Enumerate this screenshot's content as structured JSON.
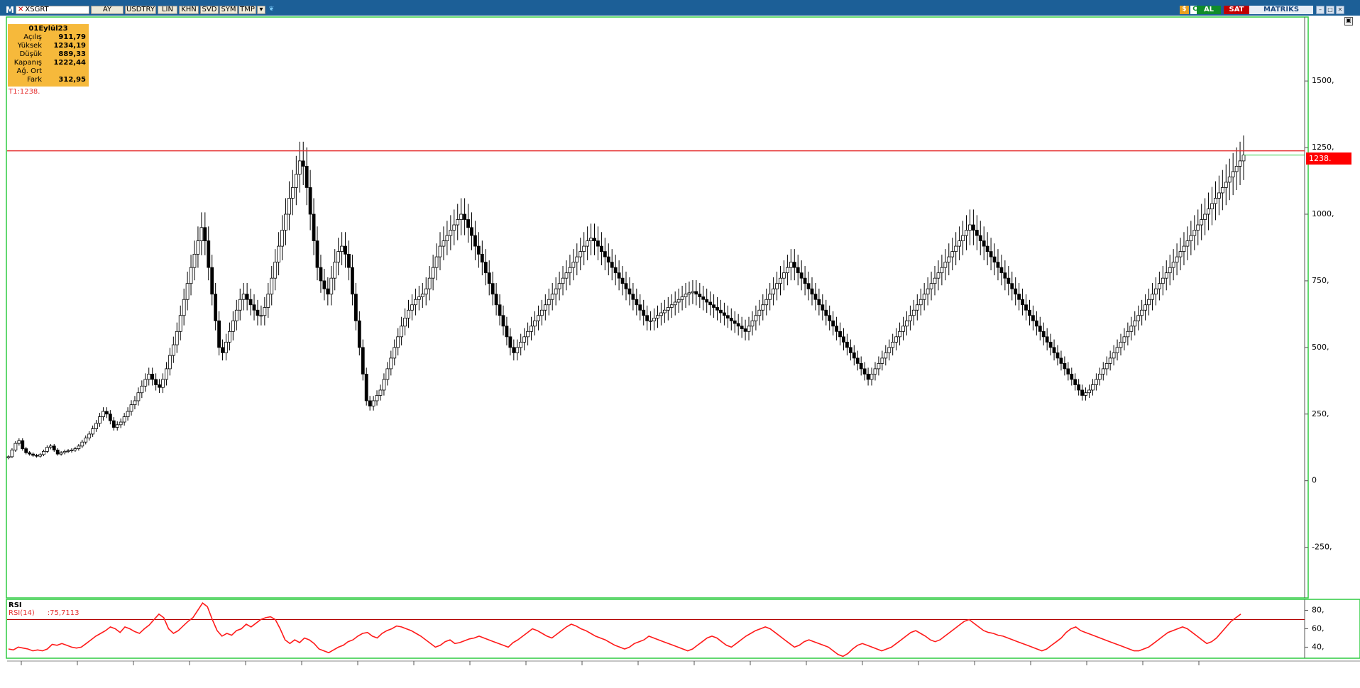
{
  "toolbar": {
    "logo": "M",
    "symbol": "XSGRT",
    "period": "AY",
    "currency": "USDTRY",
    "scale": "LIN",
    "buttons": [
      "KHN",
      "SVD",
      "SYM",
      "TMP"
    ],
    "buy_label": "AL",
    "sell_label": "SAT",
    "brand": "MATRIKS",
    "icons": [
      "close-icon",
      "dropdown-icon",
      "twitter-icon",
      "chart-icon",
      "refresh-icon",
      "minimize-icon",
      "restore-icon",
      "close-window-icon"
    ]
  },
  "info_box": {
    "date": "01Eylül23",
    "rows": [
      {
        "label": "Açılış",
        "value": "911,79"
      },
      {
        "label": "Yüksek",
        "value": "1234,19"
      },
      {
        "label": "Düşük",
        "value": "889,33"
      },
      {
        "label": "Kapanış",
        "value": "1222,44"
      },
      {
        "label": "Ağ. Ort",
        "value": ""
      },
      {
        "label": "Fark",
        "value": "312,95"
      }
    ]
  },
  "trendline_label": "T1:1238.",
  "price_tag": "1238.",
  "rsi": {
    "title": "RSI",
    "series_label": "RSI(14)",
    "series_value": ":75,7113"
  },
  "colors": {
    "toolbar": "#1c5f97",
    "up_candle": "#ffffff",
    "down_candle": "#000000",
    "trendline": "#e53030",
    "rsi_line": "#ff1a1a",
    "panel_border": "#2ecc40",
    "info_box": "#f6b93b"
  },
  "chart_data": [
    {
      "type": "candlestick",
      "title": "XSGRT",
      "period": "monthly",
      "y_ticks": [
        "-250,",
        "0",
        "250,",
        "500,",
        "750,",
        "1000,",
        "1250,",
        "1500,"
      ],
      "ylim": [
        -440,
        1740
      ],
      "horizontal_line": 1238,
      "closes": [
        90,
        115,
        140,
        150,
        120,
        105,
        100,
        95,
        92,
        98,
        110,
        125,
        130,
        115,
        100,
        105,
        110,
        112,
        115,
        120,
        130,
        145,
        160,
        175,
        195,
        215,
        240,
        260,
        250,
        225,
        200,
        210,
        220,
        240,
        260,
        285,
        300,
        330,
        355,
        380,
        400,
        380,
        360,
        350,
        380,
        420,
        470,
        510,
        560,
        620,
        680,
        740,
        800,
        850,
        900,
        950,
        900,
        800,
        700,
        600,
        500,
        480,
        520,
        560,
        600,
        640,
        680,
        700,
        680,
        660,
        640,
        620,
        620,
        650,
        700,
        760,
        820,
        880,
        940,
        1000,
        1060,
        1100,
        1150,
        1200,
        1180,
        1100,
        1000,
        900,
        800,
        750,
        720,
        700,
        760,
        820,
        860,
        880,
        850,
        800,
        700,
        600,
        500,
        400,
        300,
        280,
        300,
        320,
        340,
        380,
        420,
        460,
        500,
        540,
        580,
        610,
        640,
        660,
        680,
        690,
        700,
        720,
        760,
        800,
        840,
        880,
        900,
        920,
        940,
        960,
        980,
        1000,
        980,
        950,
        920,
        880,
        850,
        820,
        780,
        740,
        700,
        660,
        620,
        580,
        540,
        500,
        480,
        500,
        520,
        540,
        560,
        580,
        600,
        620,
        640,
        660,
        680,
        700,
        720,
        740,
        760,
        780,
        800,
        820,
        840,
        860,
        880,
        900,
        910,
        900,
        880,
        860,
        840,
        820,
        800,
        780,
        760,
        740,
        720,
        700,
        680,
        660,
        640,
        620,
        600,
        600,
        610,
        620,
        630,
        640,
        650,
        660,
        670,
        680,
        690,
        700,
        705,
        710,
        700,
        690,
        680,
        670,
        660,
        650,
        640,
        630,
        620,
        610,
        600,
        590,
        580,
        570,
        560,
        580,
        600,
        620,
        640,
        660,
        680,
        700,
        720,
        740,
        760,
        780,
        800,
        820,
        800,
        780,
        760,
        740,
        720,
        700,
        680,
        660,
        640,
        620,
        600,
        580,
        560,
        540,
        520,
        500,
        480,
        460,
        440,
        420,
        400,
        380,
        400,
        420,
        440,
        460,
        480,
        500,
        520,
        540,
        560,
        580,
        600,
        620,
        640,
        660,
        680,
        700,
        720,
        740,
        760,
        780,
        800,
        820,
        840,
        860,
        880,
        900,
        920,
        940,
        960,
        940,
        920,
        900,
        880,
        860,
        840,
        820,
        800,
        780,
        760,
        740,
        720,
        700,
        680,
        660,
        640,
        620,
        600,
        580,
        560,
        540,
        520,
        500,
        480,
        460,
        440,
        420,
        400,
        380,
        360,
        340,
        320,
        330,
        340,
        360,
        380,
        400,
        420,
        440,
        460,
        480,
        500,
        520,
        540,
        560,
        580,
        600,
        620,
        640,
        660,
        680,
        700,
        720,
        740,
        760,
        780,
        800,
        820,
        840,
        860,
        880,
        900,
        920,
        940,
        960,
        980,
        1000,
        1020,
        1040,
        1060,
        1080,
        1100,
        1120,
        1140,
        1160,
        1180,
        1200,
        1222
      ]
    },
    {
      "type": "line",
      "title": "RSI",
      "series": [
        {
          "name": "RSI(14)",
          "values": [
            38,
            37,
            40,
            39,
            38,
            36,
            37,
            36,
            38,
            43,
            42,
            44,
            42,
            40,
            39,
            40,
            44,
            48,
            52,
            55,
            58,
            62,
            60,
            56,
            62,
            60,
            57,
            55,
            60,
            64,
            70,
            76,
            72,
            60,
            55,
            58,
            63,
            68,
            72,
            80,
            88,
            84,
            70,
            58,
            52,
            55,
            53,
            58,
            60,
            65,
            62,
            66,
            70,
            72,
            73,
            70,
            60,
            48,
            44,
            48,
            45,
            50,
            48,
            44,
            38,
            36,
            34,
            37,
            40,
            42,
            46,
            48,
            52,
            55,
            56,
            52,
            50,
            55,
            58,
            60,
            63,
            62,
            60,
            58,
            55,
            52,
            48,
            44,
            40,
            42,
            46,
            48,
            44,
            45,
            47,
            49,
            50,
            52,
            50,
            48,
            46,
            44,
            42,
            40,
            45,
            48,
            52,
            56,
            60,
            58,
            55,
            52,
            50,
            54,
            58,
            62,
            65,
            63,
            60,
            58,
            55,
            52,
            50,
            48,
            45,
            42,
            40,
            38,
            40,
            44,
            46,
            48,
            52,
            50,
            48,
            46,
            44,
            42,
            40,
            38,
            36,
            38,
            42,
            46,
            50,
            52,
            50,
            46,
            42,
            40,
            44,
            48,
            52,
            55,
            58,
            60,
            62,
            60,
            56,
            52,
            48,
            44,
            40,
            42,
            46,
            48,
            46,
            44,
            42,
            40,
            36,
            32,
            30,
            33,
            38,
            42,
            44,
            42,
            40,
            38,
            36,
            38,
            40,
            44,
            48,
            52,
            56,
            58,
            55,
            52,
            48,
            46,
            48,
            52,
            56,
            60,
            64,
            68,
            70,
            66,
            62,
            58,
            56,
            55,
            53,
            52,
            50,
            48,
            46,
            44,
            42,
            40,
            38,
            36,
            38,
            42,
            46,
            50,
            56,
            60,
            62,
            58,
            56,
            54,
            52,
            50,
            48,
            46,
            44,
            42,
            40,
            38,
            36,
            36,
            38,
            40,
            44,
            48,
            52,
            56,
            58,
            60,
            62,
            60,
            56,
            52,
            48,
            44,
            46,
            50,
            56,
            62,
            68,
            72,
            76
          ]
        }
      ],
      "reference_lines": [
        70
      ],
      "y_ticks": [
        "40,",
        "60,",
        "80,"
      ],
      "ylim": [
        28,
        92
      ],
      "current_value": 75.7113
    }
  ]
}
